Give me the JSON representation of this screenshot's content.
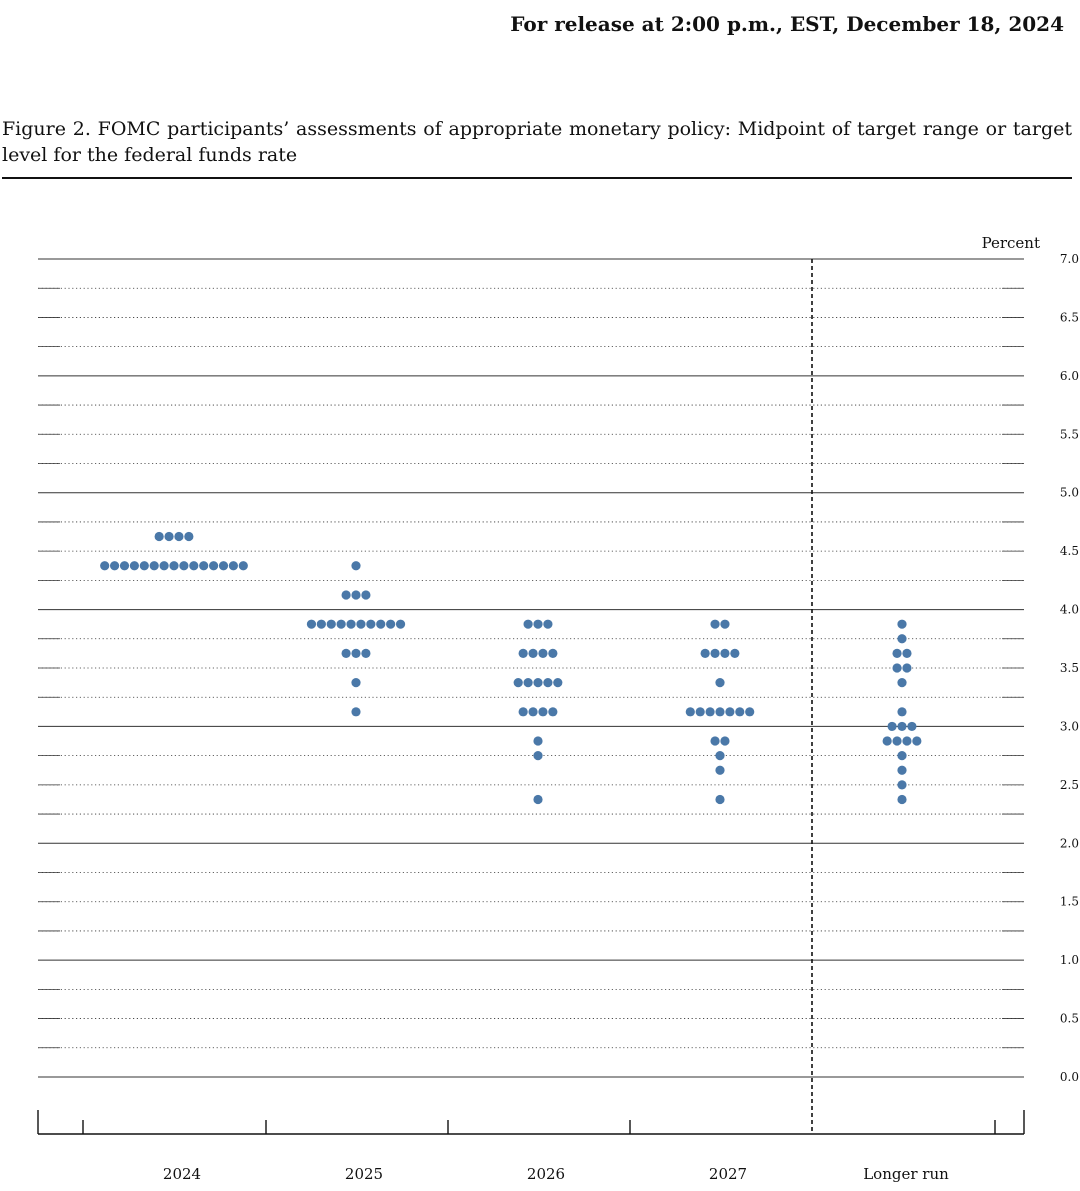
{
  "header": {
    "release": "For release at 2:00 p.m., EST, December 18, 2024"
  },
  "figure": {
    "title": "Figure 2.  FOMC participants’ assessments of appropriate monetary policy: Midpoint of target range or target level for the federal funds rate"
  },
  "chart_data": {
    "type": "scatter",
    "subtype": "dot-plot",
    "ylabel": "Percent",
    "ylim": [
      0,
      7
    ],
    "yticks": [
      "0.0",
      "0.5",
      "1.0",
      "1.5",
      "2.0",
      "2.5",
      "3.0",
      "3.5",
      "4.0",
      "4.5",
      "5.0",
      "5.5",
      "6.0",
      "6.5",
      "7.0"
    ],
    "grid": "solid major lines at whole percents, dotted minor lines every 0.25",
    "categories": [
      "2024",
      "2025",
      "2026",
      "2027",
      "Longer run"
    ],
    "dot_color": "#4a78a8",
    "separator": "dashed vertical line before Longer run",
    "projections": [
      {
        "category": "2024",
        "dots": [
          {
            "value": 4.625,
            "count": 4
          },
          {
            "value": 4.375,
            "count": 15
          }
        ]
      },
      {
        "category": "2025",
        "dots": [
          {
            "value": 4.375,
            "count": 1
          },
          {
            "value": 4.125,
            "count": 3
          },
          {
            "value": 3.875,
            "count": 10
          },
          {
            "value": 3.625,
            "count": 3
          },
          {
            "value": 3.375,
            "count": 1
          },
          {
            "value": 3.125,
            "count": 1
          }
        ]
      },
      {
        "category": "2026",
        "dots": [
          {
            "value": 3.875,
            "count": 3
          },
          {
            "value": 3.625,
            "count": 4
          },
          {
            "value": 3.375,
            "count": 5
          },
          {
            "value": 3.125,
            "count": 4
          },
          {
            "value": 2.875,
            "count": 1
          },
          {
            "value": 2.75,
            "count": 1
          },
          {
            "value": 2.375,
            "count": 1
          }
        ]
      },
      {
        "category": "2027",
        "dots": [
          {
            "value": 3.875,
            "count": 2
          },
          {
            "value": 3.625,
            "count": 4
          },
          {
            "value": 3.375,
            "count": 1
          },
          {
            "value": 3.125,
            "count": 7
          },
          {
            "value": 2.875,
            "count": 2
          },
          {
            "value": 2.75,
            "count": 1
          },
          {
            "value": 2.625,
            "count": 1
          },
          {
            "value": 2.375,
            "count": 1
          }
        ]
      },
      {
        "category": "Longer run",
        "dots": [
          {
            "value": 3.875,
            "count": 1
          },
          {
            "value": 3.75,
            "count": 1
          },
          {
            "value": 3.625,
            "count": 2
          },
          {
            "value": 3.5,
            "count": 2
          },
          {
            "value": 3.375,
            "count": 1
          },
          {
            "value": 3.125,
            "count": 1
          },
          {
            "value": 3.0,
            "count": 3
          },
          {
            "value": 2.875,
            "count": 4
          },
          {
            "value": 2.75,
            "count": 1
          },
          {
            "value": 2.625,
            "count": 1
          },
          {
            "value": 2.5,
            "count": 1
          },
          {
            "value": 2.375,
            "count": 1
          }
        ]
      }
    ]
  }
}
